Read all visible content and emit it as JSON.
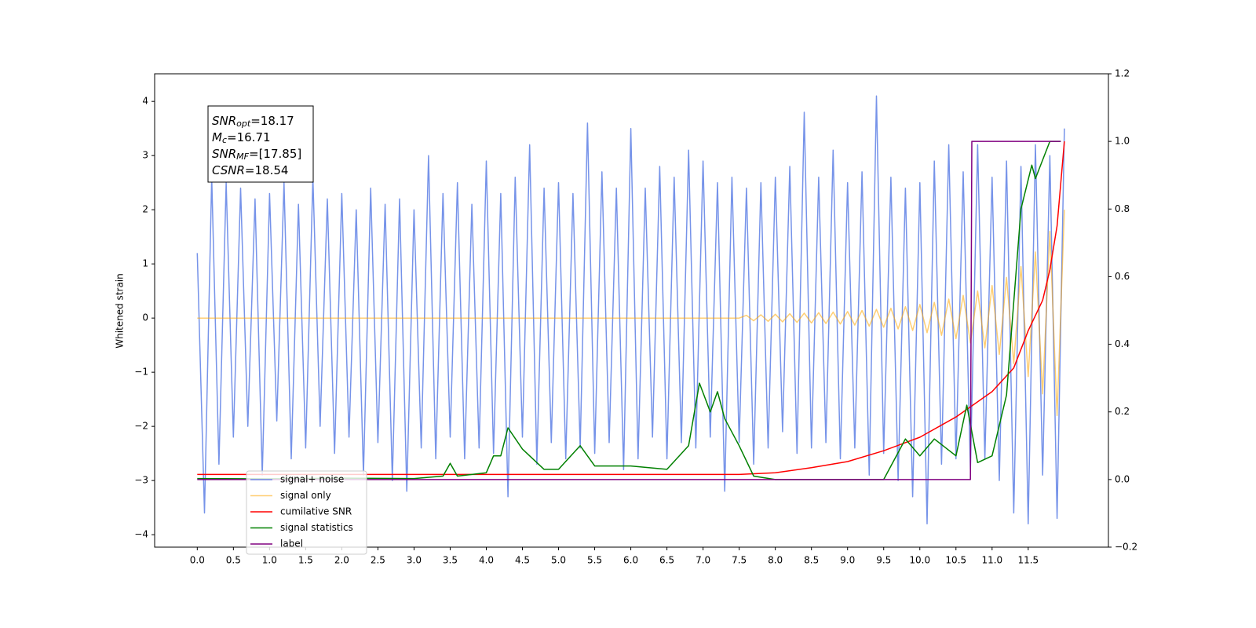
{
  "chart_data": {
    "type": "line",
    "ylabel": "Whitened strain",
    "annotations": [
      {
        "text": "SNR",
        "sub": "opt",
        "rest": "=18.17"
      },
      {
        "text": "M",
        "sub": "c",
        "rest": "=16.71"
      },
      {
        "text": "SNR",
        "sub": "MF",
        "rest": "=[17.85]"
      },
      {
        "text": "CSNR",
        "sub": null,
        "rest": "=18.54"
      }
    ],
    "xlim": [
      -0.59,
      12.61
    ],
    "xticks": [
      {
        "value": 0,
        "label": "0.0"
      },
      0.5,
      {
        "value": 1,
        "label": "1.0"
      },
      1.5,
      {
        "value": 2,
        "label": "2.0"
      },
      2.5,
      {
        "value": 3,
        "label": "3.0"
      },
      3.5,
      {
        "value": 4,
        "label": "4.0"
      },
      4.5,
      {
        "value": 5,
        "label": "5.0"
      },
      5.5,
      {
        "value": 6,
        "label": "6.0"
      },
      6.5,
      {
        "value": 7,
        "label": "7.0"
      },
      7.5,
      {
        "value": 8,
        "label": "8.0"
      },
      8.5,
      {
        "value": 9,
        "label": "9.0"
      },
      9.5,
      {
        "value": 10,
        "label": "10.0"
      },
      10.5,
      {
        "value": 11,
        "label": "11.0"
      },
      11.5
    ],
    "ylim": [
      -4.23,
      4.51
    ],
    "yticks": [
      {
        "value": -4,
        "label": "−4"
      },
      {
        "value": -3,
        "label": "−3"
      },
      {
        "value": -2,
        "label": "−2"
      },
      {
        "value": -1,
        "label": "−1"
      },
      0,
      1,
      2,
      3,
      4
    ],
    "y2lim": [
      -0.2,
      1.2
    ],
    "y2ticks": [
      {
        "value": -0.2,
        "label": "−0.2"
      },
      {
        "value": 0,
        "label": "0.0"
      },
      0.2,
      0.4,
      0.6,
      0.8,
      {
        "value": 1,
        "label": "1.0"
      },
      1.2
    ],
    "grid": false,
    "legend": "lower left",
    "series": [
      {
        "name": "signal+ noise",
        "color": "#4169e1",
        "alpha": 0.72,
        "x": [
          0,
          0.1,
          0.2,
          0.3,
          0.4,
          0.5,
          0.6,
          0.7,
          0.8,
          0.9,
          1,
          1.1,
          1.2,
          1.3,
          1.4,
          1.5,
          1.6,
          1.7,
          1.8,
          1.9,
          2,
          2.1,
          2.2,
          2.3,
          2.4,
          2.5,
          2.6,
          2.7,
          2.8,
          2.9,
          3,
          3.1,
          3.2,
          3.3,
          3.4,
          3.5,
          3.6,
          3.7,
          3.8,
          3.9,
          4,
          4.1,
          4.2,
          4.3,
          4.4,
          4.5,
          4.6,
          4.7,
          4.8,
          4.9,
          5,
          5.1,
          5.2,
          5.3,
          5.4,
          5.5,
          5.6,
          5.7,
          5.8,
          5.9,
          6,
          6.1,
          6.2,
          6.3,
          6.4,
          6.5,
          6.6,
          6.7,
          6.8,
          6.9,
          7,
          7.1,
          7.2,
          7.3,
          7.4,
          7.5,
          7.6,
          7.7,
          7.8,
          7.9,
          8,
          8.1,
          8.2,
          8.3,
          8.4,
          8.5,
          8.6,
          8.7,
          8.8,
          8.9,
          9,
          9.1,
          9.2,
          9.3,
          9.4,
          9.5,
          9.6,
          9.7,
          9.8,
          9.9,
          10,
          10.1,
          10.2,
          10.3,
          10.4,
          10.5,
          10.6,
          10.7,
          10.8,
          10.9,
          11,
          11.1,
          11.2,
          11.3,
          11.4,
          11.5,
          11.6,
          11.7,
          11.8,
          11.9,
          12
        ],
        "values": [
          1.2,
          -3.6,
          2.6,
          -2.7,
          2.5,
          -2.2,
          2.4,
          -2.0,
          2.2,
          -2.9,
          2.3,
          -1.9,
          2.5,
          -2.6,
          2.1,
          -2.4,
          2.6,
          -2.0,
          2.2,
          -2.5,
          2.3,
          -2.2,
          2.0,
          -2.9,
          2.4,
          -2.3,
          2.1,
          -3.0,
          2.2,
          -3.2,
          2.0,
          -2.4,
          3.0,
          -2.6,
          2.3,
          -2.2,
          2.5,
          -2.6,
          2.1,
          -2.4,
          2.9,
          -2.5,
          2.3,
          -3.3,
          2.6,
          -2.2,
          3.2,
          -2.7,
          2.4,
          -2.3,
          2.5,
          -2.6,
          2.3,
          -2.4,
          3.6,
          -2.5,
          2.7,
          -2.3,
          2.4,
          -2.8,
          3.5,
          -2.6,
          2.4,
          -2.2,
          2.8,
          -2.6,
          2.6,
          -2.3,
          3.1,
          -2.4,
          2.9,
          -2.2,
          2.5,
          -3.2,
          2.6,
          -2.3,
          2.4,
          -2.7,
          2.5,
          -2.4,
          2.6,
          -2.1,
          2.8,
          -2.5,
          3.8,
          -2.4,
          2.6,
          -2.3,
          3.1,
          -2.6,
          2.5,
          -2.4,
          2.7,
          -2.9,
          4.1,
          -2.5,
          2.6,
          -3.0,
          2.4,
          -3.3,
          2.5,
          -3.8,
          2.9,
          -2.7,
          3.2,
          -2.6,
          2.7,
          -2.8,
          3.2,
          -2.6,
          2.6,
          -3.0,
          2.9,
          -3.6,
          2.8,
          -3.8,
          3.2,
          -2.9,
          3.0,
          -3.7,
          3.5
        ]
      },
      {
        "name": "signal only",
        "color": "#ffa500",
        "alpha": 0.55,
        "x": [
          0,
          7.5,
          7.6,
          7.7,
          7.8,
          7.9,
          8,
          8.1,
          8.2,
          8.3,
          8.4,
          8.5,
          8.6,
          8.7,
          8.8,
          8.9,
          9,
          9.1,
          9.2,
          9.3,
          9.4,
          9.5,
          9.6,
          9.7,
          9.8,
          9.9,
          10,
          10.1,
          10.2,
          10.3,
          10.4,
          10.5,
          10.6,
          10.7,
          10.8,
          10.9,
          11,
          11.1,
          11.2,
          11.3,
          11.4,
          11.5,
          11.6,
          11.7,
          11.8,
          11.9,
          12
        ],
        "values": [
          0,
          0,
          0.05,
          -0.05,
          0.06,
          -0.06,
          0.07,
          -0.07,
          0.08,
          -0.08,
          0.09,
          -0.09,
          0.1,
          -0.1,
          0.11,
          -0.11,
          0.12,
          -0.13,
          0.14,
          -0.15,
          0.16,
          -0.17,
          0.18,
          -0.2,
          0.21,
          -0.23,
          0.25,
          -0.27,
          0.29,
          -0.32,
          0.35,
          -0.38,
          0.42,
          -0.46,
          0.5,
          -0.55,
          0.6,
          -0.67,
          0.75,
          -0.84,
          0.95,
          -1.08,
          1.22,
          -1.4,
          1.6,
          -1.8,
          2.0
        ]
      },
      {
        "name": "cumilative SNR",
        "color": "#ff0000",
        "axis": "y2",
        "x": [
          0,
          7.5,
          8,
          8.5,
          9,
          9.5,
          10,
          10.5,
          11,
          11.3,
          11.5,
          11.7,
          11.8,
          11.9,
          12
        ],
        "values": [
          0.015,
          0.015,
          0.02,
          0.035,
          0.053,
          0.085,
          0.125,
          0.185,
          0.26,
          0.33,
          0.44,
          0.53,
          0.62,
          0.75,
          1.0
        ]
      },
      {
        "name": "signal statistics",
        "color": "#008000",
        "axis": "y2",
        "x": [
          0,
          1,
          2,
          3,
          3.4,
          3.5,
          3.6,
          4.0,
          4.1,
          4.2,
          4.3,
          4.5,
          4.8,
          5.0,
          5.3,
          5.5,
          6.0,
          6.5,
          6.8,
          6.95,
          7.1,
          7.2,
          7.3,
          7.5,
          7.7,
          8.0,
          9.5,
          9.8,
          10.0,
          10.2,
          10.5,
          10.65,
          10.8,
          11.0,
          11.2,
          11.4,
          11.55,
          11.6,
          11.8,
          11.95
        ],
        "values": [
          0.003,
          0.002,
          0.004,
          0.003,
          0.01,
          0.048,
          0.01,
          0.02,
          0.07,
          0.07,
          0.153,
          0.09,
          0.03,
          0.03,
          0.1,
          0.04,
          0.04,
          0.03,
          0.1,
          0.285,
          0.2,
          0.26,
          0.18,
          0.1,
          0.01,
          0.0,
          0.0,
          0.12,
          0.07,
          0.12,
          0.07,
          0.22,
          0.05,
          0.07,
          0.25,
          0.8,
          0.93,
          0.89,
          1.0,
          1.0
        ]
      },
      {
        "name": "label",
        "color": "#800080",
        "axis": "y2",
        "x": [
          0,
          10.7,
          10.72,
          11.95
        ],
        "values": [
          0,
          0,
          1,
          1
        ]
      }
    ]
  }
}
